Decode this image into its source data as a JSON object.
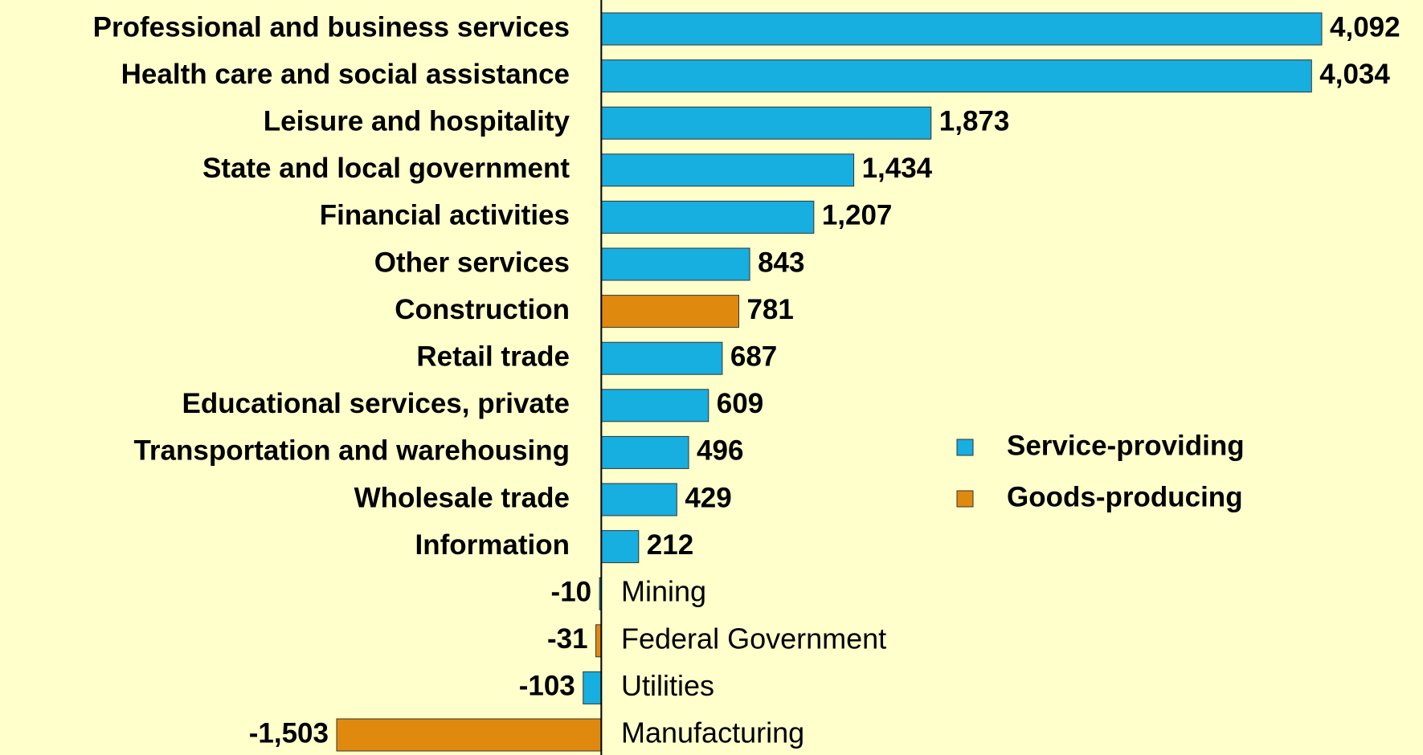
{
  "chart_data": {
    "type": "bar",
    "orientation": "horizontal",
    "categories": [
      "Professional and business services",
      "Health care and social assistance",
      "Leisure and hospitality",
      "State and local government",
      "Financial activities",
      "Other services",
      "Construction",
      "Retail trade",
      "Educational services, private",
      "Transportation and warehousing",
      "Wholesale trade",
      "Information",
      "Mining",
      "Federal Government",
      "Utilities",
      "Manufacturing"
    ],
    "values": [
      4092,
      4034,
      1873,
      1434,
      1207,
      843,
      781,
      687,
      609,
      496,
      429,
      212,
      -10,
      -31,
      -103,
      -1503
    ],
    "value_labels": [
      "4,092",
      "4,034",
      "1,873",
      "1,434",
      "1,207",
      "843",
      "781",
      "687",
      "609",
      "496",
      "429",
      "212",
      "-10",
      "-31",
      "-103",
      "-1,503"
    ],
    "colors": [
      "#17aee0",
      "#17aee0",
      "#17aee0",
      "#17aee0",
      "#17aee0",
      "#17aee0",
      "#e0890f",
      "#17aee0",
      "#17aee0",
      "#17aee0",
      "#17aee0",
      "#17aee0",
      "#17aee0",
      "#e0890f",
      "#17aee0",
      "#e0890f"
    ],
    "legend": [
      {
        "name": "Service-providing",
        "color": "#17aee0"
      },
      {
        "name": "Goods-producing",
        "color": "#e0890f"
      }
    ]
  }
}
